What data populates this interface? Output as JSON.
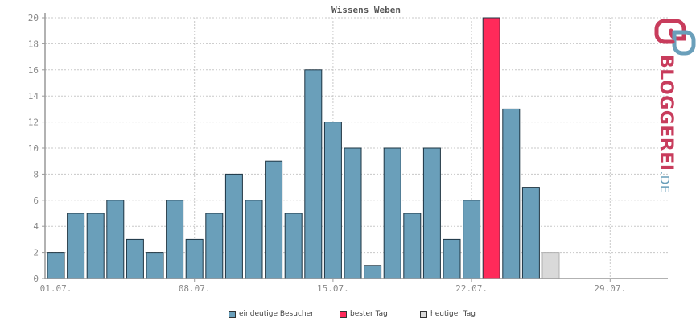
{
  "chart_data": {
    "type": "bar",
    "title": "Wissens Weben",
    "ylim": [
      0,
      20
    ],
    "yticks": [
      0,
      2,
      4,
      6,
      8,
      10,
      12,
      14,
      16,
      18,
      20
    ],
    "x_labels": [
      "01.07.",
      "08.07.",
      "15.07.",
      "22.07.",
      "29.07."
    ],
    "x_label_days": [
      1,
      8,
      15,
      22,
      29
    ],
    "days": [
      1,
      2,
      3,
      4,
      5,
      6,
      7,
      8,
      9,
      10,
      11,
      12,
      13,
      14,
      15,
      16,
      17,
      18,
      19,
      20,
      21,
      22,
      23,
      24,
      25,
      26,
      27,
      28,
      29,
      30,
      31
    ],
    "values": [
      2,
      5,
      5,
      6,
      3,
      2,
      6,
      3,
      5,
      8,
      6,
      9,
      5,
      16,
      12,
      10,
      1,
      10,
      5,
      10,
      3,
      6,
      20,
      13,
      7,
      2,
      null,
      null,
      null,
      null,
      null
    ],
    "best_day": 23,
    "today": 26,
    "grid": true,
    "legend_position": "bottom",
    "colors": {
      "visitors": "#6a9fba",
      "best": "#ff2a5a",
      "today": "#d9d9d9",
      "bar_border": "#1d3442",
      "grid": "#c8c8c8",
      "axis": "#999999",
      "tick_text": "#888888"
    }
  },
  "legend": {
    "visitors": "eindeutige Besucher",
    "best": "bester Tag",
    "today": "heutiger Tag"
  },
  "logo": {
    "text_main": "BLOGGEREI",
    "text_suffix": ".DE",
    "color_main": "#c83c5c",
    "color_suffix": "#6a9fba"
  }
}
